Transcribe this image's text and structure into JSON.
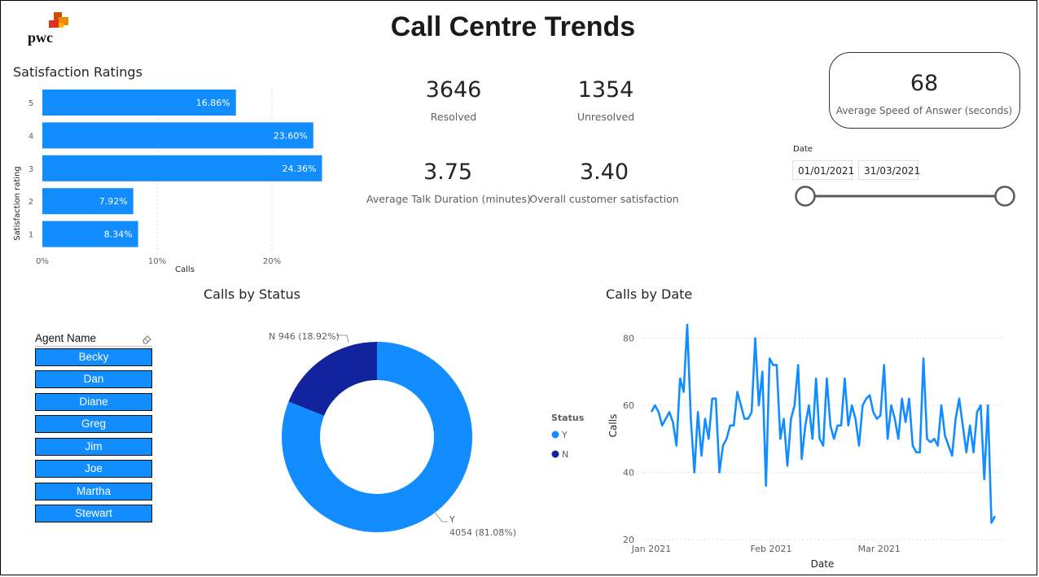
{
  "header": {
    "title": "Call Centre Trends",
    "logo_text": "pwc"
  },
  "satisfaction": {
    "title": "Satisfaction Ratings",
    "ylabel": "Satisfaction rating",
    "xlabel": "Calls"
  },
  "kpis": {
    "resolved_value": "3646",
    "resolved_label": "Resolved",
    "unresolved_value": "1354",
    "unresolved_label": "Unresolved",
    "talk_value": "3.75",
    "talk_label": "Average Talk Duration (minutes)",
    "csat_value": "3.40",
    "csat_label": "Overall customer satisfaction",
    "asa_value": "68",
    "asa_label": "Average Speed of Answer (seconds)"
  },
  "date_filter": {
    "label": "Date",
    "start": "01/01/2021",
    "end": "31/03/2021"
  },
  "agents": {
    "header": "Agent Name",
    "items": [
      "Becky",
      "Dan",
      "Diane",
      "Greg",
      "Jim",
      "Joe",
      "Martha",
      "Stewart"
    ]
  },
  "status": {
    "title": "Calls by Status",
    "legend_title": "Status",
    "label_n": "N 946 (18.92%)",
    "label_y_name": "Y",
    "label_y_value": "4054 (81.08%)"
  },
  "date_chart": {
    "title": "Calls by Date"
  },
  "colors": {
    "primary": "#118dff",
    "dark": "#12239e",
    "text": "#252423",
    "muted": "#605e5c"
  },
  "chart_data": [
    {
      "type": "bar",
      "orientation": "horizontal",
      "title": "Satisfaction Ratings",
      "categories": [
        "5",
        "4",
        "3",
        "2",
        "1"
      ],
      "values": [
        16.86,
        23.6,
        24.36,
        7.92,
        8.34
      ],
      "data_labels": [
        "16.86%",
        "23.60%",
        "24.36%",
        "7.92%",
        "8.34%"
      ],
      "xlabel": "Calls",
      "ylabel": "Satisfaction rating",
      "xlim": [
        0,
        25
      ],
      "xticks": [
        0,
        10,
        20
      ],
      "xtick_labels": [
        "0%",
        "10%",
        "20%"
      ]
    },
    {
      "type": "pie",
      "donut": true,
      "title": "Calls by Status",
      "labels": [
        "Y",
        "N"
      ],
      "values": [
        4054,
        946
      ],
      "percents": [
        81.08,
        18.92
      ],
      "legend": "center-right"
    },
    {
      "type": "line",
      "title": "Calls by Date",
      "xlabel": "Date",
      "ylabel": "Calls",
      "x_start": "2021-01-01",
      "x_end": "2021-03-31",
      "xtick_labels": [
        "Jan 2021",
        "Feb 2021",
        "Mar 2021"
      ],
      "ylim": [
        20,
        85
      ],
      "yticks": [
        20,
        40,
        60,
        80
      ],
      "values": [
        58,
        60,
        58,
        54,
        56,
        58,
        55,
        48,
        68,
        64,
        84,
        56,
        40,
        58,
        45,
        56,
        50,
        62,
        62,
        40,
        48,
        50,
        54,
        54,
        64,
        60,
        56,
        56,
        58,
        80,
        60,
        70,
        36,
        74,
        72,
        72,
        50,
        56,
        42,
        56,
        60,
        72,
        44,
        54,
        60,
        50,
        68,
        50,
        48,
        68,
        54,
        50,
        54,
        54,
        68,
        54,
        60,
        56,
        48,
        60,
        62,
        63,
        58,
        56,
        57,
        72,
        50,
        60,
        56,
        50,
        62,
        55,
        62,
        48,
        46,
        46,
        74,
        50,
        49,
        50,
        48,
        60,
        51,
        48,
        45,
        56,
        62,
        54,
        46,
        54,
        46,
        58,
        60,
        38,
        60,
        25,
        27
      ]
    }
  ]
}
